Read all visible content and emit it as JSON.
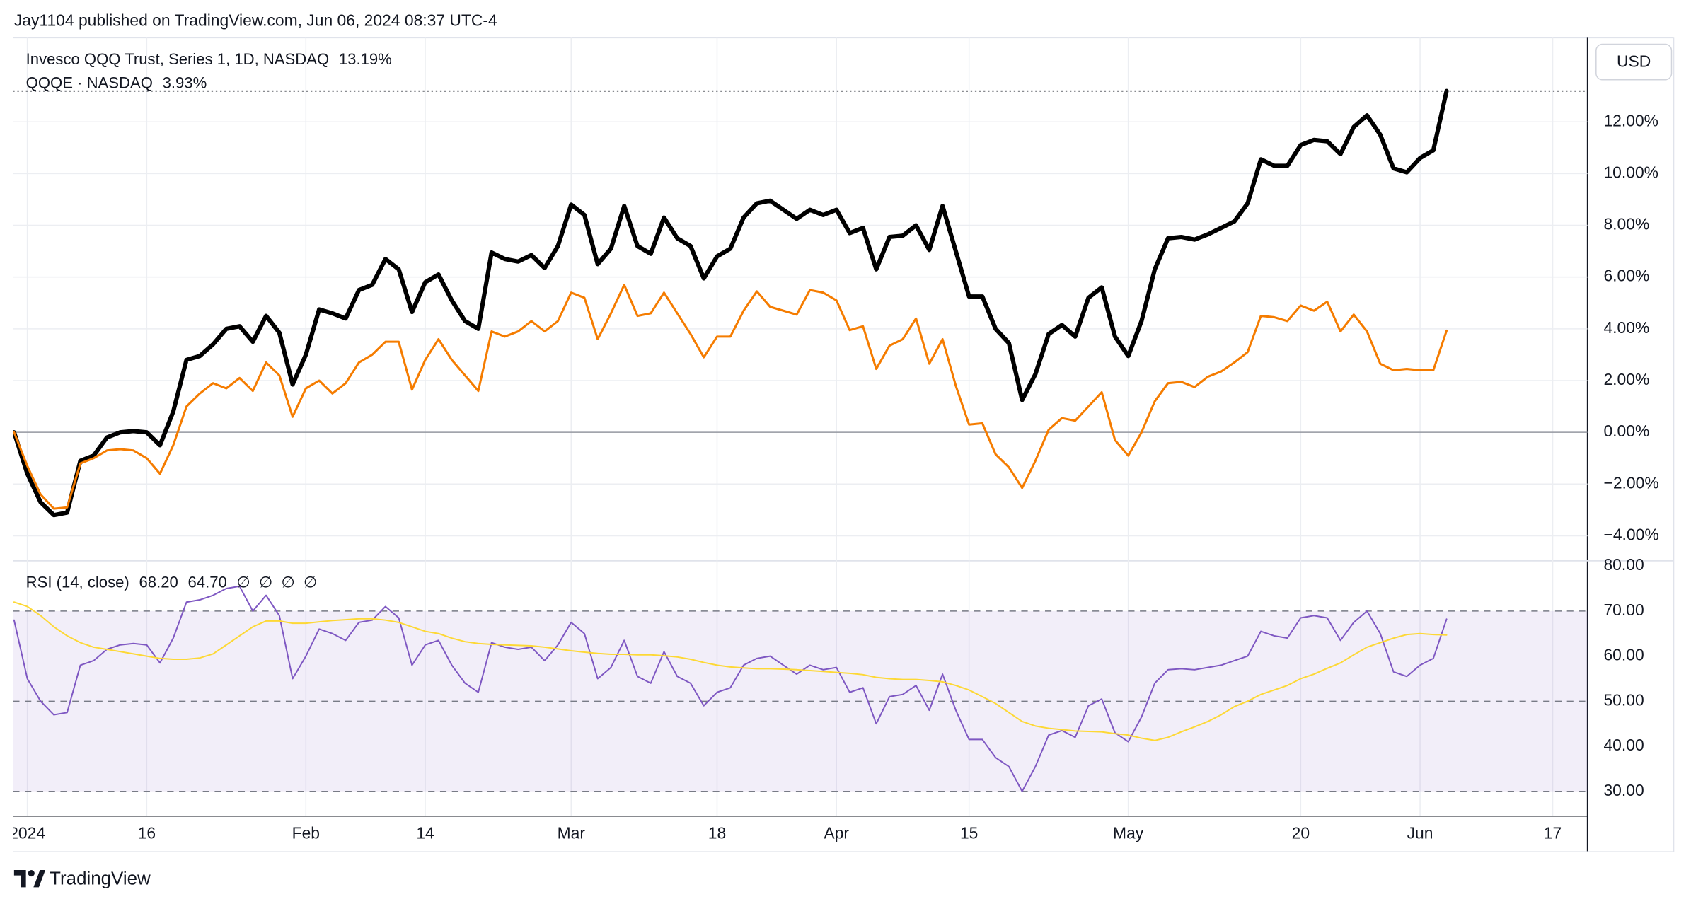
{
  "header": {
    "text": "Jay1104 published on TradingView.com, Jun 06, 2024 08:37 UTC-4"
  },
  "footer": {
    "brand": "TradingView"
  },
  "currency": "USD",
  "chart_data": [
    {
      "type": "line",
      "ylim": [
        -4.96,
        15.25
      ],
      "yticks": [
        {
          "value": 12,
          "label": "12.00%"
        },
        {
          "value": 10,
          "label": "10.00%"
        },
        {
          "value": 8,
          "label": "8.00%"
        },
        {
          "value": 6,
          "label": "6.00%"
        },
        {
          "value": 4,
          "label": "4.00%"
        },
        {
          "value": 2,
          "label": "2.00%"
        },
        {
          "value": 0,
          "label": "0.00%"
        },
        {
          "value": -2,
          "label": "−2.00%"
        },
        {
          "value": -4,
          "label": "−4.00%"
        }
      ],
      "grid": true,
      "series": [
        {
          "name": "Invesco QQQ Trust, Series 1, 1D, NASDAQ",
          "last_label": "13.19%",
          "color": "#000000",
          "values": [
            0,
            -1.6,
            -2.7,
            -3.2,
            -3.1,
            -1.1,
            -0.9,
            -0.2,
            0.0,
            0.05,
            0.0,
            -0.5,
            0.8,
            2.8,
            2.95,
            3.4,
            4.0,
            4.1,
            3.5,
            4.5,
            3.85,
            1.85,
            3.0,
            4.75,
            4.6,
            4.4,
            5.5,
            5.7,
            6.7,
            6.3,
            4.65,
            5.8,
            6.1,
            5.1,
            4.3,
            4.0,
            6.95,
            6.7,
            6.6,
            6.85,
            6.35,
            7.2,
            8.8,
            8.4,
            6.5,
            7.1,
            8.75,
            7.2,
            6.9,
            8.3,
            7.5,
            7.2,
            5.95,
            6.8,
            7.1,
            8.3,
            8.85,
            8.95,
            8.6,
            8.25,
            8.6,
            8.4,
            8.6,
            7.7,
            7.9,
            6.3,
            7.55,
            7.6,
            8.0,
            7.05,
            8.75,
            7.0,
            5.25,
            5.25,
            4.0,
            3.45,
            1.25,
            2.25,
            3.8,
            4.15,
            3.7,
            5.2,
            5.6,
            3.7,
            2.95,
            4.3,
            6.3,
            7.5,
            7.55,
            7.45,
            7.65,
            7.9,
            8.15,
            8.85,
            10.55,
            10.3,
            10.3,
            11.1,
            11.3,
            11.25,
            10.75,
            11.8,
            12.25,
            11.5,
            10.2,
            10.05,
            10.6,
            10.9,
            13.19,
            null,
            null,
            null,
            null,
            null,
            null,
            null,
            null
          ]
        },
        {
          "name": "QQQE · NASDAQ",
          "last_label": "3.93%",
          "color": "#f57c00",
          "values": [
            0,
            -1.3,
            -2.4,
            -2.95,
            -2.9,
            -1.2,
            -1.0,
            -0.7,
            -0.65,
            -0.7,
            -1.0,
            -1.6,
            -0.5,
            1.0,
            1.5,
            1.9,
            1.7,
            2.1,
            1.6,
            2.7,
            2.2,
            0.6,
            1.7,
            2.0,
            1.5,
            1.9,
            2.7,
            3.0,
            3.5,
            3.5,
            1.65,
            2.8,
            3.6,
            2.8,
            2.2,
            1.6,
            3.9,
            3.7,
            3.9,
            4.3,
            3.9,
            4.3,
            5.4,
            5.2,
            3.6,
            4.6,
            5.7,
            4.5,
            4.6,
            5.4,
            4.6,
            3.8,
            2.9,
            3.7,
            3.7,
            4.7,
            5.45,
            4.85,
            4.7,
            4.55,
            5.5,
            5.4,
            5.1,
            3.95,
            4.1,
            2.45,
            3.35,
            3.6,
            4.4,
            2.65,
            3.6,
            1.8,
            0.3,
            0.35,
            -0.85,
            -1.35,
            -2.15,
            -1.1,
            0.1,
            0.55,
            0.45,
            1.0,
            1.55,
            -0.3,
            -0.9,
            0.0,
            1.2,
            1.9,
            1.95,
            1.75,
            2.15,
            2.35,
            2.7,
            3.1,
            4.5,
            4.45,
            4.3,
            4.9,
            4.7,
            5.05,
            3.9,
            4.55,
            3.9,
            2.65,
            2.4,
            2.45,
            2.4,
            2.4,
            3.93,
            null,
            null,
            null,
            null,
            null,
            null,
            null,
            null
          ]
        }
      ]
    },
    {
      "type": "line",
      "title": "RSI (14, close)",
      "extra_label": "∅ ∅ ∅ ∅",
      "ylim": [
        24.5,
        81.2
      ],
      "yticks": [
        {
          "value": 80,
          "label": "80.00"
        },
        {
          "value": 70,
          "label": "70.00"
        },
        {
          "value": 60,
          "label": "60.00"
        },
        {
          "value": 50,
          "label": "50.00"
        },
        {
          "value": 40,
          "label": "40.00"
        },
        {
          "value": 30,
          "label": "30.00"
        }
      ],
      "band": [
        30,
        70
      ],
      "hlines": [
        70,
        50,
        30
      ],
      "categories": [
        null,
        "2024",
        null,
        null,
        null,
        null,
        null,
        null,
        null,
        null,
        "16",
        null,
        null,
        null,
        null,
        null,
        null,
        null,
        null,
        null,
        null,
        null,
        "Feb",
        null,
        null,
        null,
        null,
        null,
        null,
        null,
        null,
        "14",
        null,
        null,
        null,
        null,
        null,
        null,
        null,
        null,
        null,
        null,
        "Mar",
        null,
        null,
        null,
        null,
        null,
        null,
        null,
        null,
        null,
        null,
        "18",
        null,
        null,
        null,
        null,
        null,
        null,
        null,
        null,
        "Apr",
        null,
        null,
        null,
        null,
        null,
        null,
        null,
        null,
        null,
        "15",
        null,
        null,
        null,
        null,
        null,
        null,
        null,
        null,
        null,
        null,
        null,
        "May",
        null,
        null,
        null,
        null,
        null,
        null,
        null,
        null,
        null,
        null,
        null,
        null,
        "20",
        null,
        null,
        null,
        null,
        null,
        null,
        null,
        null,
        "Jun",
        null,
        null,
        null,
        null,
        null,
        null,
        null,
        null,
        null,
        "17"
      ],
      "series": [
        {
          "last_label": "68.20",
          "color": "#7e57c2",
          "values": [
            68,
            55,
            50,
            47,
            47.5,
            58,
            59,
            61.5,
            62.5,
            62.8,
            62.5,
            58.5,
            64,
            72,
            72.5,
            73.5,
            75,
            75.5,
            70,
            73.5,
            69,
            55,
            60,
            66,
            65,
            63.5,
            67.5,
            68,
            71,
            68.5,
            58,
            62.5,
            63.5,
            58,
            54,
            52,
            63,
            62,
            61.5,
            62,
            59,
            62.5,
            67.5,
            65,
            55,
            57.5,
            63.5,
            55.5,
            54,
            61,
            55.5,
            54,
            49,
            52,
            53,
            58,
            59.5,
            60,
            58,
            56,
            58,
            57,
            57.5,
            52,
            53,
            45,
            51,
            51.5,
            53.5,
            48,
            56,
            48,
            41.5,
            41.5,
            37.5,
            35.5,
            30,
            35.5,
            42.5,
            43.5,
            42,
            49,
            50.5,
            43,
            41,
            46.5,
            54,
            57,
            57.2,
            57,
            57.5,
            58,
            59,
            60,
            65.5,
            64.5,
            64,
            68.5,
            69,
            68.5,
            63.5,
            67.5,
            70,
            65,
            56.5,
            55.5,
            58,
            59.5,
            68.2,
            null,
            null,
            null,
            null,
            null,
            null,
            null,
            null
          ]
        },
        {
          "last_label": "64.70",
          "color": "#fdd835",
          "values": [
            72,
            71,
            69,
            66.5,
            64.5,
            63,
            62,
            61.5,
            61,
            60.5,
            60,
            59.5,
            59.3,
            59.3,
            59.6,
            60.5,
            62.5,
            64.5,
            66.5,
            67.8,
            67.8,
            67.3,
            67.3,
            67.6,
            67.9,
            68.1,
            68.3,
            68.3,
            68,
            67.5,
            66.5,
            65.5,
            65,
            64,
            63.2,
            62.8,
            62.6,
            62.5,
            62.4,
            62.3,
            62,
            61.6,
            61.2,
            60.9,
            60.6,
            60.4,
            60.4,
            60.3,
            60.3,
            60.1,
            59.8,
            59.3,
            58.6,
            58,
            57.6,
            57.4,
            57.2,
            57.2,
            57.1,
            57,
            56.8,
            56.6,
            56.4,
            56.2,
            55.9,
            55.3,
            55,
            54.8,
            54.8,
            54.6,
            54.3,
            53.5,
            52.5,
            51,
            49.5,
            47.5,
            45.5,
            44.5,
            44,
            43.7,
            43.4,
            43.3,
            43.2,
            42.8,
            42.5,
            41.8,
            41.3,
            42,
            43.2,
            44.3,
            45.5,
            47,
            48.8,
            50,
            51.5,
            52.5,
            53.5,
            55,
            56,
            57.3,
            58.5,
            60.3,
            62,
            63,
            64,
            64.8,
            65,
            64.8,
            64.7,
            null,
            null,
            null,
            null,
            null,
            null,
            null,
            null
          ]
        }
      ]
    }
  ]
}
